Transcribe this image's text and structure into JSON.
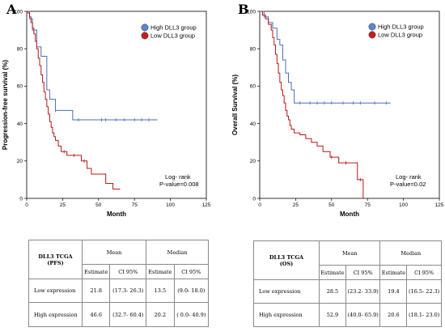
{
  "panels": {
    "A": {
      "letter": "A"
    },
    "B": {
      "letter": "B"
    }
  },
  "colors": {
    "high": "#4a6fb5",
    "low": "#b81717",
    "high_fill": "#5b86d6",
    "low_fill": "#c91d1d"
  },
  "chart_data": [
    {
      "type": "line",
      "xlabel": "Month",
      "ylabel": "Progression-free survival (%)",
      "xlim": [
        0,
        125
      ],
      "ylim": [
        0,
        100
      ],
      "xticks": [
        0,
        25,
        50,
        75,
        100,
        125
      ],
      "yticks": [
        0,
        20,
        40,
        60,
        80,
        100
      ],
      "legend_position": "top-right",
      "annotation": [
        "Log- rank",
        "P-value=0.008"
      ],
      "series": [
        {
          "name": "High DLL3 group",
          "color": "#4a6fb5",
          "x": [
            0,
            2,
            4,
            7,
            10,
            14,
            16,
            20,
            25,
            32,
            91
          ],
          "y": [
            100,
            96,
            90,
            81,
            76,
            58,
            53,
            47,
            47,
            42,
            42
          ],
          "censored_x": [
            20,
            36,
            52,
            55,
            62,
            68,
            75,
            80,
            85
          ]
        },
        {
          "name": "Low DLL3 group",
          "color": "#b81717",
          "x": [
            0,
            1,
            2,
            3,
            4,
            5,
            6,
            7,
            8,
            9,
            10,
            11,
            12,
            13,
            14,
            15,
            16,
            17,
            18,
            19,
            20,
            22,
            24,
            28,
            31,
            35,
            38,
            42,
            45,
            48,
            52,
            55,
            60,
            65
          ],
          "y": [
            100,
            99,
            97,
            94,
            91,
            88,
            84,
            80,
            75,
            71,
            66,
            62,
            57,
            53,
            49,
            45,
            41,
            38,
            35,
            33,
            31,
            28,
            25,
            23,
            23,
            23,
            20,
            16,
            13,
            13,
            13,
            8,
            5,
            5
          ],
          "censored_x": [
            26,
            33,
            40
          ]
        }
      ]
    },
    {
      "type": "line",
      "xlabel": "Month",
      "ylabel": "Overall Survival (%)",
      "xlim": [
        0,
        125
      ],
      "ylim": [
        0,
        100
      ],
      "xticks": [
        0,
        25,
        50,
        75,
        100,
        125
      ],
      "yticks": [
        0,
        20,
        40,
        60,
        80,
        100
      ],
      "legend_position": "top-right",
      "annotation": [
        "Log- rank",
        "P-value=0.02"
      ],
      "series": [
        {
          "name": "High DLL3 group",
          "color": "#4a6fb5",
          "x": [
            0,
            3,
            6,
            9,
            12,
            14,
            16,
            18,
            20,
            22,
            24,
            91
          ],
          "y": [
            100,
            97,
            94,
            91,
            85,
            82,
            74,
            67,
            62,
            58,
            51,
            51
          ],
          "censored_x": [
            28,
            35,
            40,
            45,
            50,
            58,
            65,
            70,
            80,
            88
          ]
        },
        {
          "name": "Low DLL3 group",
          "color": "#b81717",
          "x": [
            0,
            2,
            4,
            6,
            8,
            9,
            10,
            11,
            12,
            13,
            14,
            15,
            16,
            17,
            18,
            19,
            20,
            21,
            22,
            24,
            28,
            32,
            36,
            40,
            44,
            49,
            55,
            62,
            68,
            72
          ],
          "y": [
            100,
            98,
            96,
            93,
            90,
            86,
            82,
            77,
            72,
            67,
            62,
            58,
            55,
            51,
            47,
            44,
            42,
            39,
            37,
            35,
            34,
            32,
            30,
            28,
            25,
            22,
            19,
            19,
            10,
            0
          ],
          "censored_x": [
            50,
            60,
            70
          ]
        }
      ]
    }
  ],
  "tables": [
    {
      "label_lines": [
        "DLL3 TCGA",
        "(PFS)"
      ],
      "mean_header": "Mean",
      "median_header": "Median",
      "sub_headers": [
        "Estimate",
        "CI 95%",
        "Estimate",
        "CI 95%"
      ],
      "rows": [
        {
          "label": "Low expression",
          "mean_est": "21.8",
          "mean_ci": "(17.3- 26.3)",
          "med_est": "13.5",
          "med_ci": "(9.0- 18.0)"
        },
        {
          "label": "High expression",
          "mean_est": "46.6",
          "mean_ci": "(32.7- 60.4)",
          "med_est": "20.2",
          "med_ci": "( 0.0- 40.9)"
        }
      ]
    },
    {
      "label_lines": [
        "DLL3 TCGA",
        "(OS)"
      ],
      "mean_header": "Mean",
      "median_header": "Median",
      "sub_headers": [
        "Estimate",
        "CI 95%",
        "Estimate",
        "CI 95%"
      ],
      "rows": [
        {
          "label": "Low expression",
          "mean_est": "28.5",
          "mean_ci": "(23.2- 33.9)",
          "med_est": "19.4",
          "med_ci": "(16.5- 22.3)"
        },
        {
          "label": "High expression",
          "mean_est": "52.9",
          "mean_ci": "(40.0- 65.9)",
          "med_est": "20.6",
          "med_ci": "(18.1- 23.0)"
        }
      ]
    }
  ]
}
